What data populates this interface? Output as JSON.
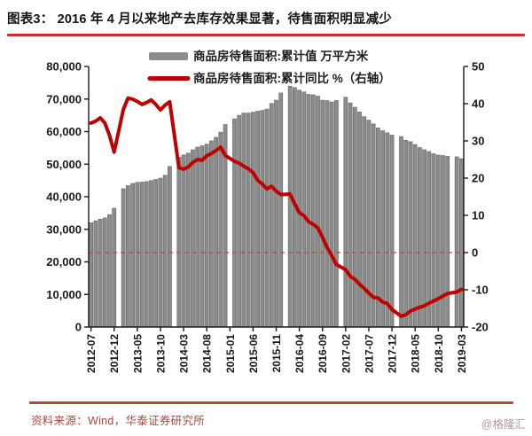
{
  "header": {
    "title": "图表3： 2016 年 4 月以来地产去库存效果显著，待售面积明显减少"
  },
  "footer": {
    "source": "资料来源：Wind，华泰证券研究所",
    "watermark": "@格隆汇"
  },
  "colors": {
    "accent_red": "#cb2e2a",
    "bar_fill": "#8c8c8c",
    "bar_stroke": "#6e6e6e",
    "line_red": "#c00000",
    "zero_dash_red": "#b94a44",
    "axis_black": "#1a1a1a",
    "footer_text_red": "#b2453c",
    "watermark_gray_red": "#b79898"
  },
  "chart_data": {
    "type": "bar+line combo",
    "title": "",
    "legend": [
      {
        "label": "商品房待售面积:累计值 万平方米",
        "marker": "bar",
        "color": "#8c8c8c"
      },
      {
        "label": "商品房待售面积:累计同比 %（右轴）",
        "marker": "line",
        "color": "#c00000"
      }
    ],
    "months": [
      "2012-07",
      "2012-08",
      "2012-09",
      "2012-10",
      "2012-11",
      "2012-12",
      "2013-01",
      "2013-02",
      "2013-03",
      "2013-04",
      "2013-05",
      "2013-06",
      "2013-07",
      "2013-08",
      "2013-09",
      "2013-10",
      "2013-11",
      "2013-12",
      "2014-01",
      "2014-02",
      "2014-03",
      "2014-04",
      "2014-05",
      "2014-06",
      "2014-07",
      "2014-08",
      "2014-09",
      "2014-10",
      "2014-11",
      "2014-12",
      "2015-01",
      "2015-02",
      "2015-03",
      "2015-04",
      "2015-05",
      "2015-06",
      "2015-07",
      "2015-08",
      "2015-09",
      "2015-10",
      "2015-11",
      "2015-12",
      "2016-01",
      "2016-02",
      "2016-03",
      "2016-04",
      "2016-05",
      "2016-06",
      "2016-07",
      "2016-08",
      "2016-09",
      "2016-10",
      "2016-11",
      "2016-12",
      "2017-01",
      "2017-02",
      "2017-03",
      "2017-04",
      "2017-05",
      "2017-06",
      "2017-07",
      "2017-08",
      "2017-09",
      "2017-10",
      "2017-11",
      "2017-12",
      "2018-01",
      "2018-02",
      "2018-03",
      "2018-04",
      "2018-05",
      "2018-06",
      "2018-07",
      "2018-08",
      "2018-09",
      "2018-10",
      "2018-11",
      "2018-12",
      "2019-01",
      "2019-02",
      "2019-03"
    ],
    "series": [
      {
        "name": "商品房待售面积:累计值",
        "unit": "万平方米",
        "type": "bar",
        "axis": "left",
        "values": [
          32000,
          32600,
          33100,
          33500,
          34500,
          36460,
          null,
          42441,
          43400,
          44060,
          44397,
          44500,
          44636,
          44976,
          45300,
          45700,
          46600,
          49295,
          null,
          52130,
          52835,
          53402,
          54396,
          55230,
          55629,
          56160,
          57148,
          58239,
          59795,
          62169,
          null,
          63922,
          64998,
          65681,
          65666,
          65951,
          66259,
          66510,
          66900,
          68632,
          69637,
          71853,
          null,
          73931,
          73516,
          72721,
          72169,
          71416,
          71282,
          70870,
          69612,
          69522,
          69095,
          69539,
          null,
          70555,
          68810,
          67469,
          66018,
          64577,
          63496,
          62352,
          61140,
          60258,
          59606,
          58923,
          null,
          58468,
          57329,
          56898,
          56010,
          55083,
          54428,
          53873,
          53191,
          52789,
          52627,
          52414,
          null,
          52251,
          51646
        ]
      },
      {
        "name": "商品房待售面积:累计同比",
        "unit": "%",
        "type": "line",
        "axis": "right",
        "values": [
          34.8,
          35.3,
          36.2,
          34.8,
          31.5,
          27.0,
          null,
          38.5,
          41.5,
          41.2,
          40.6,
          39.8,
          40.3,
          41.0,
          39.8,
          38.3,
          39.6,
          40.5,
          null,
          22.8,
          22.4,
          23.0,
          24.2,
          25.0,
          24.8,
          26.0,
          26.6,
          27.4,
          28.3,
          26.1,
          null,
          24.5,
          24.0,
          23.2,
          22.5,
          21.5,
          19.4,
          18.4,
          17.1,
          17.8,
          16.5,
          15.6,
          null,
          15.7,
          13.1,
          10.7,
          9.9,
          8.3,
          7.6,
          6.6,
          4.1,
          1.3,
          -0.8,
          -3.2,
          null,
          -4.6,
          -6.4,
          -7.2,
          -8.5,
          -9.6,
          -10.9,
          -12.0,
          -12.2,
          -13.3,
          -13.7,
          -15.3,
          null,
          -17.1,
          -16.7,
          -15.7,
          -15.2,
          -14.7,
          -14.3,
          -13.6,
          -13.0,
          -12.4,
          -11.7,
          -11.0,
          null,
          -10.6,
          -9.9
        ]
      }
    ],
    "left_axis": {
      "min": 0,
      "max": 80000,
      "step": 10000,
      "tick_labels": [
        "80,000",
        "70,000",
        "60,000",
        "50,000",
        "40,000",
        "30,000",
        "20,000",
        "10,000",
        "0"
      ]
    },
    "right_axis": {
      "min": -20,
      "max": 50,
      "step": 10,
      "tick_labels": [
        "50",
        "40",
        "30",
        "20",
        "10",
        "0",
        "-10",
        "-20"
      ]
    },
    "x_tick_labels": [
      "2012-07",
      "2012-12",
      "2013-05",
      "2013-10",
      "2014-03",
      "2014-08",
      "2015-01",
      "2015-06",
      "2015-11",
      "2016-04",
      "2016-09",
      "2017-02",
      "2017-07",
      "2017-12",
      "2018-05",
      "2018-10",
      "2019-03"
    ],
    "x_tick_every": 5,
    "zero_line_right_axis": 0,
    "gridlines": false,
    "legend_position": "top-center"
  }
}
